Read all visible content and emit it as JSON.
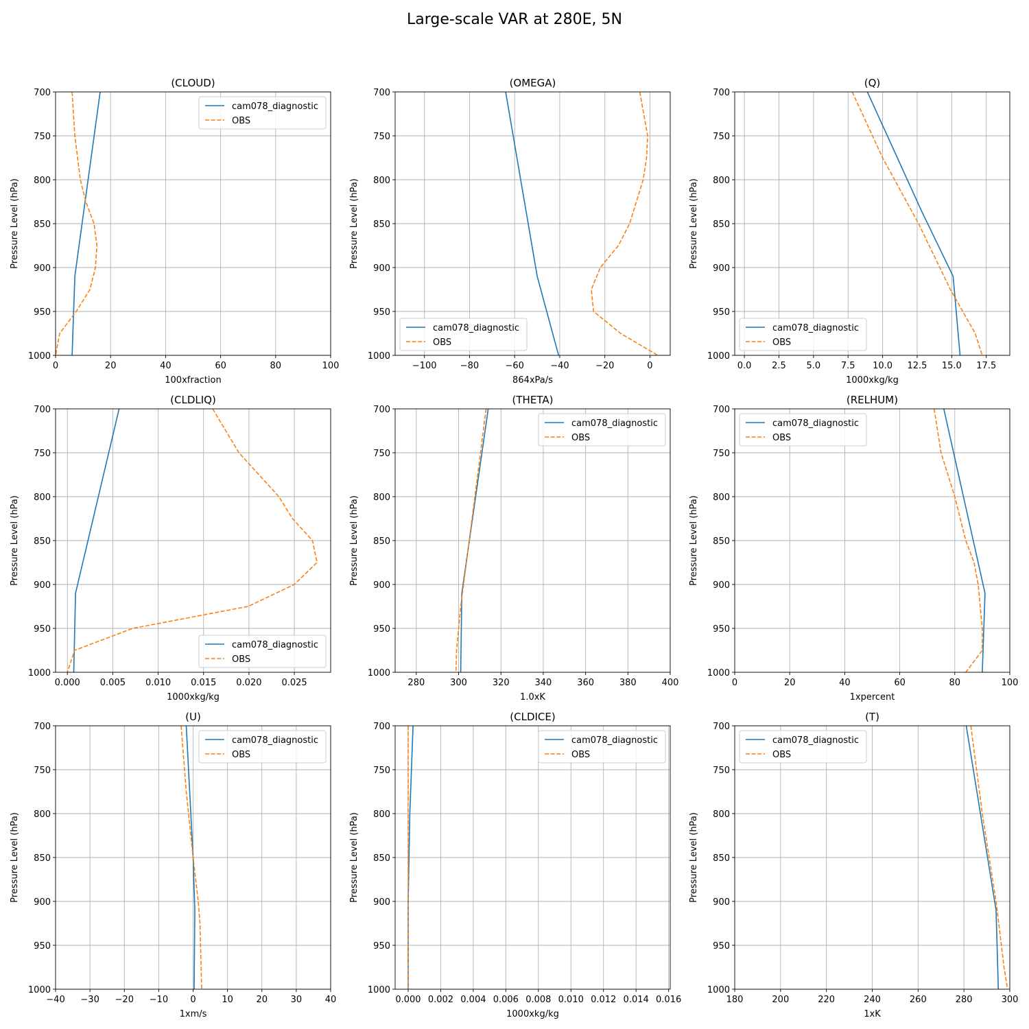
{
  "figure": {
    "title": "Large-scale VAR at 280E, 5N"
  },
  "style": {
    "model_color": "#1f77b4",
    "obs_color": "#ff7f0e",
    "grid_color": "#b0b0b0"
  },
  "chart_data": [
    {
      "type": "line",
      "title": "(CLOUD)",
      "xlabel": "100xfraction",
      "ylabel": "Pressure Level (hPa)",
      "xlim": [
        0,
        100
      ],
      "xticks": [
        0,
        20,
        40,
        60,
        80,
        100
      ],
      "xtick_labels": [
        "0",
        "20",
        "40",
        "60",
        "80",
        "100"
      ],
      "ylim": [
        1000,
        700
      ],
      "yticks": [
        700,
        750,
        800,
        850,
        900,
        950,
        1000
      ],
      "legend": "upper right",
      "series": [
        {
          "name": "cam078_diagnostic",
          "style": "solid",
          "x": [
            16.2,
            7,
            6
          ],
          "y": [
            700,
            910,
            1000
          ]
        },
        {
          "name": "OBS",
          "style": "dashed",
          "x": [
            6,
            7,
            9,
            11,
            14,
            15,
            14.5,
            12.5,
            7.5,
            1.5,
            0
          ],
          "y": [
            700,
            750,
            800,
            825,
            850,
            875,
            900,
            925,
            950,
            975,
            1000
          ]
        }
      ]
    },
    {
      "type": "line",
      "title": "(OMEGA)",
      "xlabel": "864xPa/s",
      "ylabel": "Pressure Level (hPa)",
      "xlim": [
        -113,
        9
      ],
      "xticks": [
        -100,
        -80,
        -60,
        -40,
        -20,
        0
      ],
      "xtick_labels": [
        "−100",
        "−80",
        "−60",
        "−40",
        "−20",
        "0"
      ],
      "ylim": [
        1000,
        700
      ],
      "yticks": [
        700,
        750,
        800,
        850,
        900,
        950,
        1000
      ],
      "legend": "lower left",
      "series": [
        {
          "name": "cam078_diagnostic",
          "style": "solid",
          "x": [
            -64,
            -50,
            -40.5
          ],
          "y": [
            700,
            910,
            1000
          ]
        },
        {
          "name": "OBS",
          "style": "dashed",
          "x": [
            -4.5,
            -1,
            -1.5,
            -3,
            -6,
            -9,
            -14,
            -22,
            -26,
            -25,
            -13,
            3.5
          ],
          "y": [
            700,
            750,
            775,
            800,
            825,
            850,
            875,
            900,
            925,
            950,
            975,
            1000
          ]
        }
      ]
    },
    {
      "type": "line",
      "title": "(Q)",
      "xlabel": "1000xkg/kg",
      "ylabel": "Pressure Level (hPa)",
      "xlim": [
        -0.7,
        19.2
      ],
      "xticks": [
        0,
        2.5,
        5,
        7.5,
        10,
        12.5,
        15,
        17.5
      ],
      "xtick_labels": [
        "0.0",
        "2.5",
        "5.0",
        "7.5",
        "10.0",
        "12.5",
        "15.0",
        "17.5"
      ],
      "ylim": [
        1000,
        700
      ],
      "yticks": [
        700,
        750,
        800,
        850,
        900,
        950,
        1000
      ],
      "legend": "lower left",
      "series": [
        {
          "name": "cam078_diagnostic",
          "style": "solid",
          "x": [
            8.9,
            12.8,
            15.1,
            15.6
          ],
          "y": [
            700,
            835,
            910,
            1000
          ]
        },
        {
          "name": "OBS",
          "style": "dashed",
          "x": [
            7.8,
            10,
            12.6,
            14.9,
            16.7,
            17.2
          ],
          "y": [
            700,
            775,
            850,
            925,
            975,
            1000
          ]
        }
      ]
    },
    {
      "type": "line",
      "title": "(CLDLIQ)",
      "xlabel": "1000xkg/kg",
      "ylabel": "Pressure Level (hPa)",
      "xlim": [
        -0.0013,
        0.029
      ],
      "xticks": [
        0,
        0.005,
        0.01,
        0.015,
        0.02,
        0.025
      ],
      "xtick_labels": [
        "0.000",
        "0.005",
        "0.010",
        "0.015",
        "0.020",
        "0.025"
      ],
      "ylim": [
        1000,
        700
      ],
      "yticks": [
        700,
        750,
        800,
        850,
        900,
        950,
        1000
      ],
      "legend": "lower right",
      "series": [
        {
          "name": "cam078_diagnostic",
          "style": "solid",
          "x": [
            0.0057,
            0.0009,
            0.0007
          ],
          "y": [
            700,
            910,
            1000
          ]
        },
        {
          "name": "OBS",
          "style": "dashed",
          "x": [
            0.016,
            0.0189,
            0.0233,
            0.0248,
            0.027,
            0.0275,
            0.025,
            0.0199,
            0.0072,
            0.0008,
            0.0
          ],
          "y": [
            700,
            750,
            800,
            825,
            850,
            875,
            900,
            925,
            950,
            975,
            1000
          ]
        }
      ]
    },
    {
      "type": "line",
      "title": "(THETA)",
      "xlabel": "1.0xK",
      "ylabel": "Pressure Level (hPa)",
      "xlim": [
        270,
        400
      ],
      "xticks": [
        280,
        300,
        320,
        340,
        360,
        380,
        400
      ],
      "xtick_labels": [
        "280",
        "300",
        "320",
        "340",
        "360",
        "380",
        "400"
      ],
      "ylim": [
        1000,
        700
      ],
      "yticks": [
        700,
        750,
        800,
        850,
        900,
        950,
        1000
      ],
      "legend": "upper right",
      "series": [
        {
          "name": "cam078_diagnostic",
          "style": "solid",
          "x": [
            314,
            301.5,
            301
          ],
          "y": [
            700,
            910,
            1000
          ]
        },
        {
          "name": "OBS",
          "style": "dashed",
          "x": [
            313,
            309,
            305,
            301,
            299,
            298.8
          ],
          "y": [
            700,
            775,
            850,
            925,
            975,
            1000
          ]
        }
      ]
    },
    {
      "type": "line",
      "title": "(RELHUM)",
      "xlabel": "1xpercent",
      "ylabel": "Pressure Level (hPa)",
      "xlim": [
        0,
        100
      ],
      "xticks": [
        0,
        20,
        40,
        60,
        80,
        100
      ],
      "xtick_labels": [
        "0",
        "20",
        "40",
        "60",
        "80",
        "100"
      ],
      "ylim": [
        1000,
        700
      ],
      "yticks": [
        700,
        750,
        800,
        850,
        900,
        950,
        1000
      ],
      "legend": "upper left",
      "series": [
        {
          "name": "cam078_diagnostic",
          "style": "solid",
          "x": [
            76,
            91,
            90
          ],
          "y": [
            700,
            910,
            1000
          ]
        },
        {
          "name": "OBS",
          "style": "dashed",
          "x": [
            72.5,
            75,
            80,
            84,
            87,
            88.5,
            90,
            90,
            84
          ],
          "y": [
            700,
            750,
            800,
            850,
            875,
            900,
            950,
            975,
            1000
          ]
        }
      ]
    },
    {
      "type": "line",
      "title": "(U)",
      "xlabel": "1xm/s",
      "ylabel": "Pressure Level (hPa)",
      "xlim": [
        -40,
        40
      ],
      "xticks": [
        -40,
        -30,
        -20,
        -10,
        0,
        10,
        20,
        30,
        40
      ],
      "xtick_labels": [
        "−40",
        "−30",
        "−20",
        "−10",
        "0",
        "10",
        "20",
        "30",
        "40"
      ],
      "ylim": [
        1000,
        700
      ],
      "yticks": [
        700,
        750,
        800,
        850,
        900,
        950,
        1000
      ],
      "legend": "upper right",
      "series": [
        {
          "name": "cam078_diagnostic",
          "style": "solid",
          "x": [
            -2,
            0,
            0.5,
            0.3
          ],
          "y": [
            700,
            850,
            910,
            1000
          ]
        },
        {
          "name": "OBS",
          "style": "dashed",
          "x": [
            -3.5,
            -2,
            0,
            1.5,
            2,
            2.5
          ],
          "y": [
            700,
            775,
            850,
            900,
            925,
            1000
          ]
        }
      ]
    },
    {
      "type": "line",
      "title": "(CLDICE)",
      "xlabel": "1000xkg/kg",
      "ylabel": "Pressure Level (hPa)",
      "xlim": [
        -0.0008,
        0.0161
      ],
      "xticks": [
        0,
        0.002,
        0.004,
        0.006,
        0.008,
        0.01,
        0.012,
        0.014,
        0.016
      ],
      "xtick_labels": [
        "0.000",
        "0.002",
        "0.004",
        "0.006",
        "0.008",
        "0.010",
        "0.012",
        "0.014",
        "0.016"
      ],
      "ylim": [
        1000,
        700
      ],
      "yticks": [
        700,
        750,
        800,
        850,
        900,
        950,
        1000
      ],
      "legend": "upper right",
      "series": [
        {
          "name": "cam078_diagnostic",
          "style": "solid",
          "x": [
            0.0003,
            0.0001,
            0.0,
            0.0
          ],
          "y": [
            700,
            800,
            900,
            1000
          ]
        },
        {
          "name": "OBS",
          "style": "dashed",
          "x": [
            0.0,
            0.0,
            0.0
          ],
          "y": [
            700,
            850,
            1000
          ]
        }
      ]
    },
    {
      "type": "line",
      "title": "(T)",
      "xlabel": "1xK",
      "ylabel": "Pressure Level (hPa)",
      "xlim": [
        180,
        300
      ],
      "xticks": [
        180,
        200,
        220,
        240,
        260,
        280,
        300
      ],
      "xtick_labels": [
        "180",
        "200",
        "220",
        "240",
        "260",
        "280",
        "300"
      ],
      "ylim": [
        1000,
        700
      ],
      "yticks": [
        700,
        750,
        800,
        850,
        900,
        950,
        1000
      ],
      "legend": "upper left",
      "series": [
        {
          "name": "cam078_diagnostic",
          "style": "solid",
          "x": [
            281,
            294,
            295
          ],
          "y": [
            700,
            910,
            1000
          ]
        },
        {
          "name": "OBS",
          "style": "dashed",
          "x": [
            283,
            288,
            294,
            297.5,
            299
          ],
          "y": [
            700,
            800,
            900,
            975,
            1000
          ]
        }
      ]
    }
  ]
}
